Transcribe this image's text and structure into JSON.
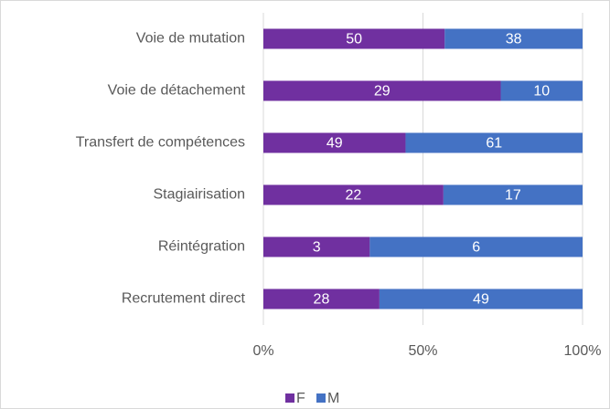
{
  "chart_data": {
    "type": "bar",
    "orientation": "horizontal",
    "stacked": true,
    "normalize": true,
    "categories": [
      "Voie de mutation",
      "Voie de détachement",
      "Transfert de compétences",
      "Stagiairisation",
      "Réintégration",
      "Recrutement direct"
    ],
    "series": [
      {
        "name": "F",
        "color": "#7030a0",
        "values": [
          50,
          29,
          49,
          22,
          3,
          28
        ]
      },
      {
        "name": "M",
        "color": "#4472c4",
        "values": [
          38,
          10,
          61,
          17,
          6,
          49
        ]
      }
    ],
    "xlim": [
      0,
      100
    ],
    "xticks": [
      {
        "value": 0,
        "label": "0%"
      },
      {
        "value": 50,
        "label": "50%"
      },
      {
        "value": 100,
        "label": "100%"
      }
    ],
    "grid": true,
    "legend": "bottom"
  }
}
